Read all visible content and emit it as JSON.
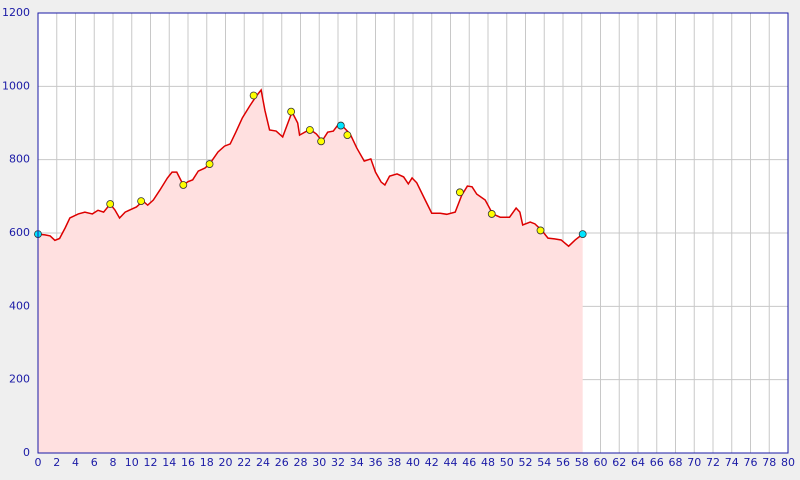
{
  "chart_data": {
    "type": "area",
    "xlim": [
      0,
      80
    ],
    "ylim": [
      0,
      1200
    ],
    "xticks": [
      0,
      2,
      4,
      6,
      8,
      10,
      12,
      14,
      16,
      18,
      20,
      22,
      24,
      26,
      28,
      30,
      32,
      34,
      36,
      38,
      40,
      42,
      44,
      46,
      48,
      50,
      52,
      54,
      56,
      58,
      60,
      62,
      64,
      66,
      68,
      70,
      72,
      74,
      76,
      78,
      80
    ],
    "yticks": [
      0,
      200,
      400,
      600,
      800,
      1000,
      1200
    ],
    "grid": true,
    "series": [
      {
        "color": "#dd0000",
        "fill": "#ffe0e0",
        "x": [
          0,
          0.75,
          1.3,
          1.8,
          2.3,
          2.9,
          3.4,
          4.3,
          5,
          5.8,
          6.4,
          7,
          7.7,
          8.2,
          8.7,
          9.3,
          9.8,
          10.5,
          11.2,
          11.7,
          12.3,
          13,
          13.8,
          14.3,
          14.8,
          15.5,
          16,
          16.5,
          17.1,
          17.8,
          18.3,
          19.2,
          19.9,
          20.5,
          21.1,
          21.8,
          22.6,
          23.3,
          23.8,
          24.2,
          24.7,
          25.4,
          26.1,
          26.7,
          27.1,
          27.7,
          27.9,
          28.6,
          29.1,
          29.7,
          30.3,
          30.9,
          31.5,
          32,
          32.5,
          33.3,
          34,
          34.8,
          35.5,
          36,
          36.6,
          37,
          37.5,
          38.3,
          39,
          39.5,
          39.9,
          40.4,
          41.3,
          42,
          42.9,
          43.6,
          44.5,
          45.2,
          45.8,
          46.3,
          46.8,
          47.7,
          48.5,
          49.3,
          50.3,
          51,
          51.4,
          51.7,
          52.5,
          53,
          53.7,
          54.4,
          55.1,
          55.8,
          56.6,
          57.3,
          58.1
        ],
        "values": [
          597,
          595,
          592,
          580,
          585,
          614,
          641,
          652,
          657,
          652,
          662,
          657,
          679,
          663,
          641,
          657,
          663,
          671,
          687,
          676,
          690,
          717,
          750,
          766,
          766,
          731,
          740,
          745,
          769,
          777,
          788,
          821,
          837,
          843,
          875,
          914,
          947,
          974,
          990,
          935,
          881,
          878,
          862,
          903,
          930,
          900,
          867,
          877,
          881,
          870,
          851,
          875,
          878,
          895,
          891,
          870,
          832,
          796,
          802,
          766,
          739,
          731,
          755,
          761,
          753,
          734,
          750,
          737,
          690,
          654,
          654,
          651,
          657,
          703,
          728,
          726,
          706,
          690,
          652,
          643,
          643,
          668,
          657,
          622,
          630,
          625,
          608,
          586,
          584,
          581,
          564,
          581,
          597
        ]
      },
      {
        "type": "points",
        "x": [
          0,
          7.7,
          11,
          15.5,
          18.3,
          23,
          27,
          29,
          30.2,
          32.3,
          33,
          45,
          48.4,
          53.6,
          58.1
        ],
        "values": [
          597,
          679,
          687,
          731,
          788,
          975,
          931,
          881,
          850,
          893,
          867,
          711,
          652,
          607,
          597
        ],
        "colors": [
          "#00e5ff",
          "#ffff00",
          "#ffff00",
          "#ffff00",
          "#ffff00",
          "#ffff00",
          "#ffff00",
          "#ffff00",
          "#ffff00",
          "#00e5ff",
          "#ffff00",
          "#ffff00",
          "#ffff00",
          "#ffff00",
          "#00e5ff"
        ]
      }
    ]
  }
}
